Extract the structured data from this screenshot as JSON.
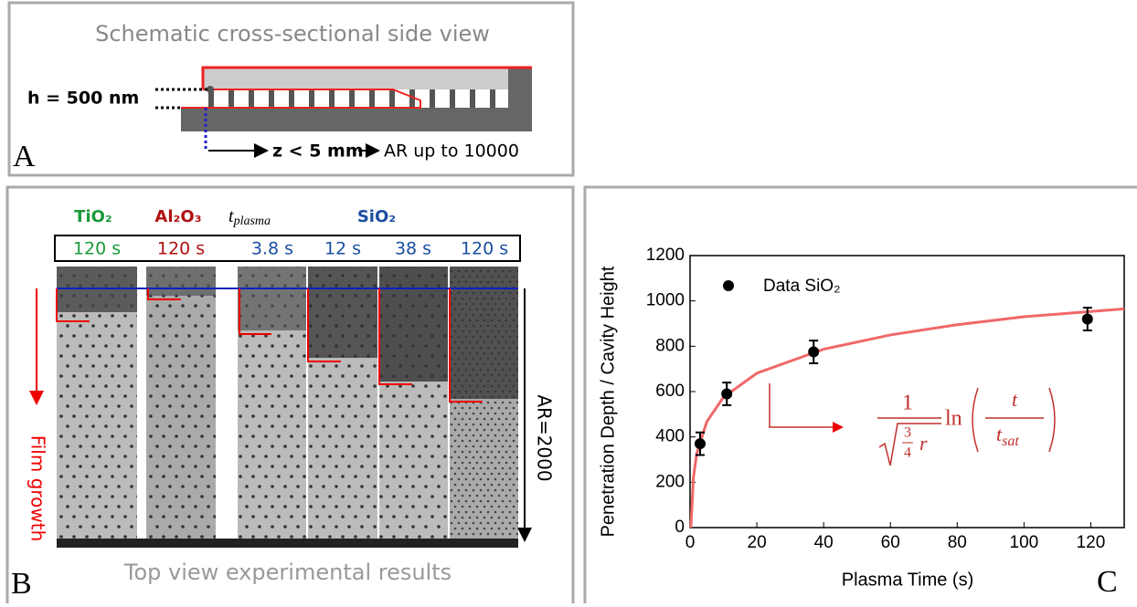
{
  "panel_a": {
    "title": "Schematic cross-sectional side view",
    "h_label": "h = 500 nm",
    "z_label": "z < 5 mm",
    "ar_label": "AR up to 10000",
    "letter": "A"
  },
  "panel_b": {
    "materials": {
      "tio2": "TiO₂",
      "al2o3": "Al₂O₃",
      "t_base": "t",
      "t_sub": "plasma",
      "sio2": "SiO₂"
    },
    "times": [
      "120 s",
      "120 s",
      "3.8 s",
      "12 s",
      "38 s",
      "120 s"
    ],
    "film_growth": "Film growth",
    "ar": "AR=2000",
    "caption": "Top view experimental results",
    "letter": "B"
  },
  "panel_c": {
    "letter": "C",
    "formula": {
      "numerator": "1",
      "root_num": "3",
      "root_den": "4",
      "root_var": "r",
      "fn": "ln",
      "inner_num": "t",
      "inner_den": "t",
      "inner_sub": "sat"
    }
  },
  "chart_data": {
    "type": "scatter",
    "x_label": "Plasma Time (s)",
    "y_label": "Penetration Depth / Cavity Height",
    "xlim": [
      0,
      130
    ],
    "xticks": [
      0,
      20,
      40,
      60,
      80,
      100,
      120
    ],
    "ylim": [
      0,
      1200
    ],
    "yticks": [
      0,
      200,
      400,
      600,
      800,
      1000,
      1200
    ],
    "series": [
      {
        "name": "Data SiO₂",
        "color": "#000000",
        "x": [
          3,
          11,
          37,
          119
        ],
        "values": [
          370,
          590,
          775,
          920
        ],
        "errors": [
          50,
          50,
          50,
          50
        ]
      }
    ],
    "fit": {
      "color": "#f06868",
      "x": [
        0.24,
        1,
        2,
        5,
        10,
        20,
        40,
        60,
        80,
        100,
        130
      ],
      "values": [
        0,
        220,
        327,
        467,
        575,
        681,
        787,
        850,
        895,
        930,
        965
      ]
    }
  }
}
